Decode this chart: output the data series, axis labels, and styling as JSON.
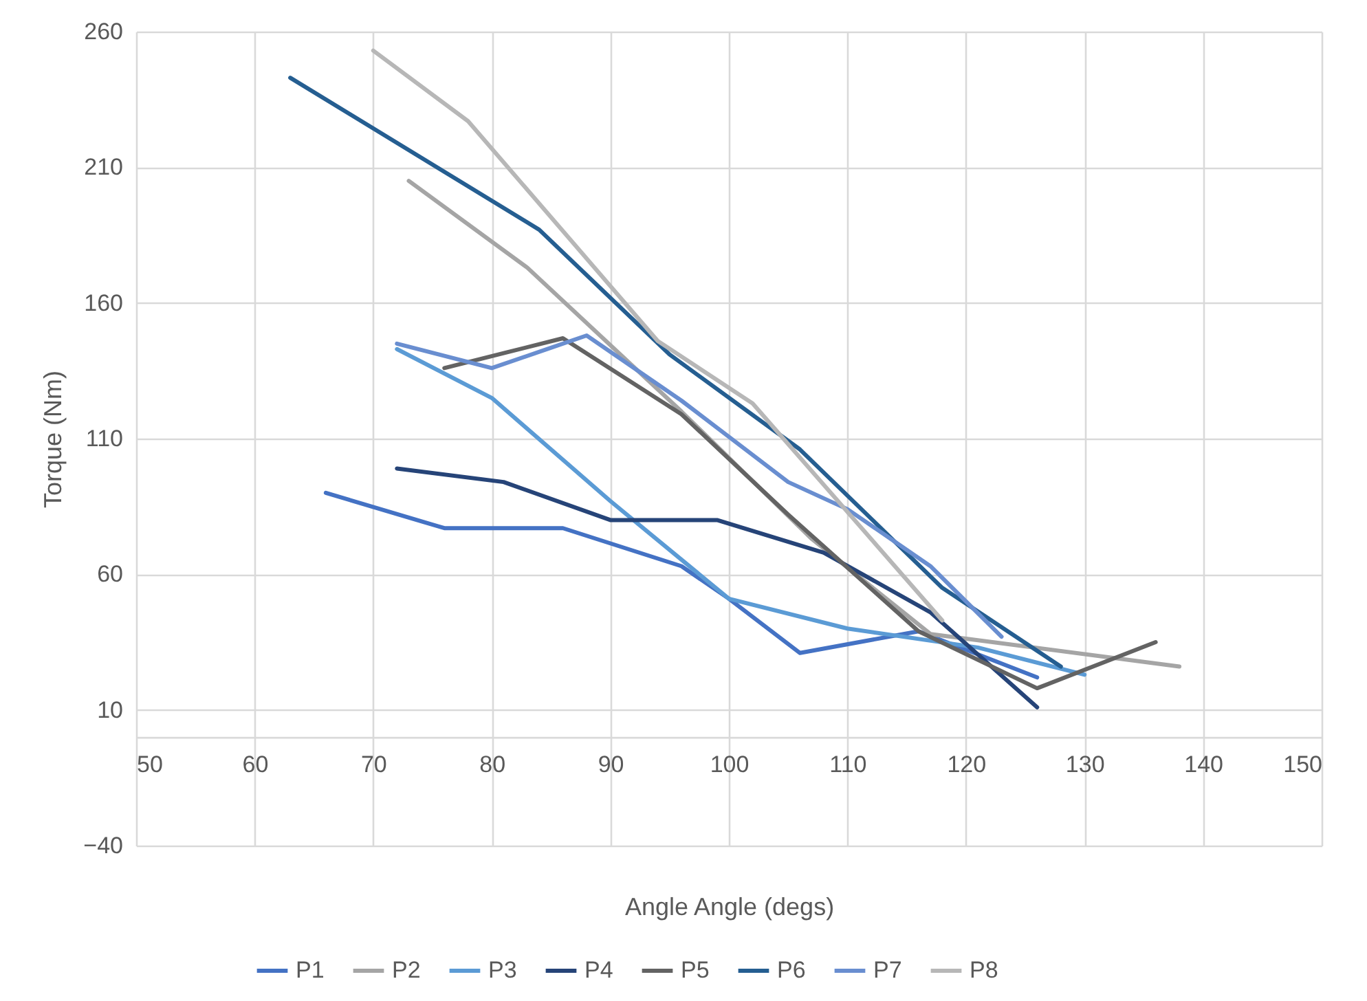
{
  "chart_data": {
    "type": "line",
    "xlabel": "Angle Angle (degs)",
    "ylabel": "Torque (Nm)",
    "xlim": [
      50,
      150
    ],
    "xticks": [
      50,
      60,
      70,
      80,
      90,
      100,
      110,
      120,
      130,
      140,
      150
    ],
    "ylim": [
      -40,
      260
    ],
    "yticks": [
      -40,
      10,
      60,
      110,
      160,
      210,
      260
    ],
    "grid": true,
    "legend": "bottom",
    "series": [
      {
        "name": "P1",
        "color": "#4472c4",
        "x": [
          66,
          76,
          86,
          96,
          100,
          106,
          116,
          126
        ],
        "values": [
          90,
          77,
          77,
          63,
          51,
          31,
          39,
          22
        ]
      },
      {
        "name": "P2",
        "color": "#a5a5a5",
        "x": [
          73,
          83,
          96,
          107,
          117,
          138
        ],
        "values": [
          205,
          173,
          120,
          73,
          38,
          26
        ]
      },
      {
        "name": "P3",
        "color": "#5b9bd5",
        "x": [
          72,
          80,
          90,
          100,
          110,
          121,
          130
        ],
        "values": [
          143,
          125,
          87,
          51,
          40,
          33,
          23
        ]
      },
      {
        "name": "P4",
        "color": "#264478",
        "x": [
          72,
          81,
          90,
          99,
          108,
          117,
          126
        ],
        "values": [
          99,
          94,
          80,
          80,
          68,
          46,
          11
        ]
      },
      {
        "name": "P5",
        "color": "#636363",
        "x": [
          76,
          86,
          96,
          105,
          116,
          126,
          136
        ],
        "values": [
          136,
          147,
          119,
          82,
          39,
          18,
          35
        ]
      },
      {
        "name": "P6",
        "color": "#255e91",
        "x": [
          63,
          84,
          95,
          106,
          118,
          128
        ],
        "values": [
          243,
          187,
          141,
          106,
          55,
          26
        ]
      },
      {
        "name": "P7",
        "color": "#698ed0",
        "x": [
          72,
          80,
          88,
          96,
          105,
          110,
          117,
          123
        ],
        "values": [
          145,
          136,
          148,
          124,
          94,
          84,
          63,
          37
        ]
      },
      {
        "name": "P8",
        "color": "#b7b7b7",
        "x": [
          70,
          78,
          94,
          102,
          118
        ],
        "values": [
          253,
          227,
          146,
          123,
          43
        ]
      }
    ]
  }
}
